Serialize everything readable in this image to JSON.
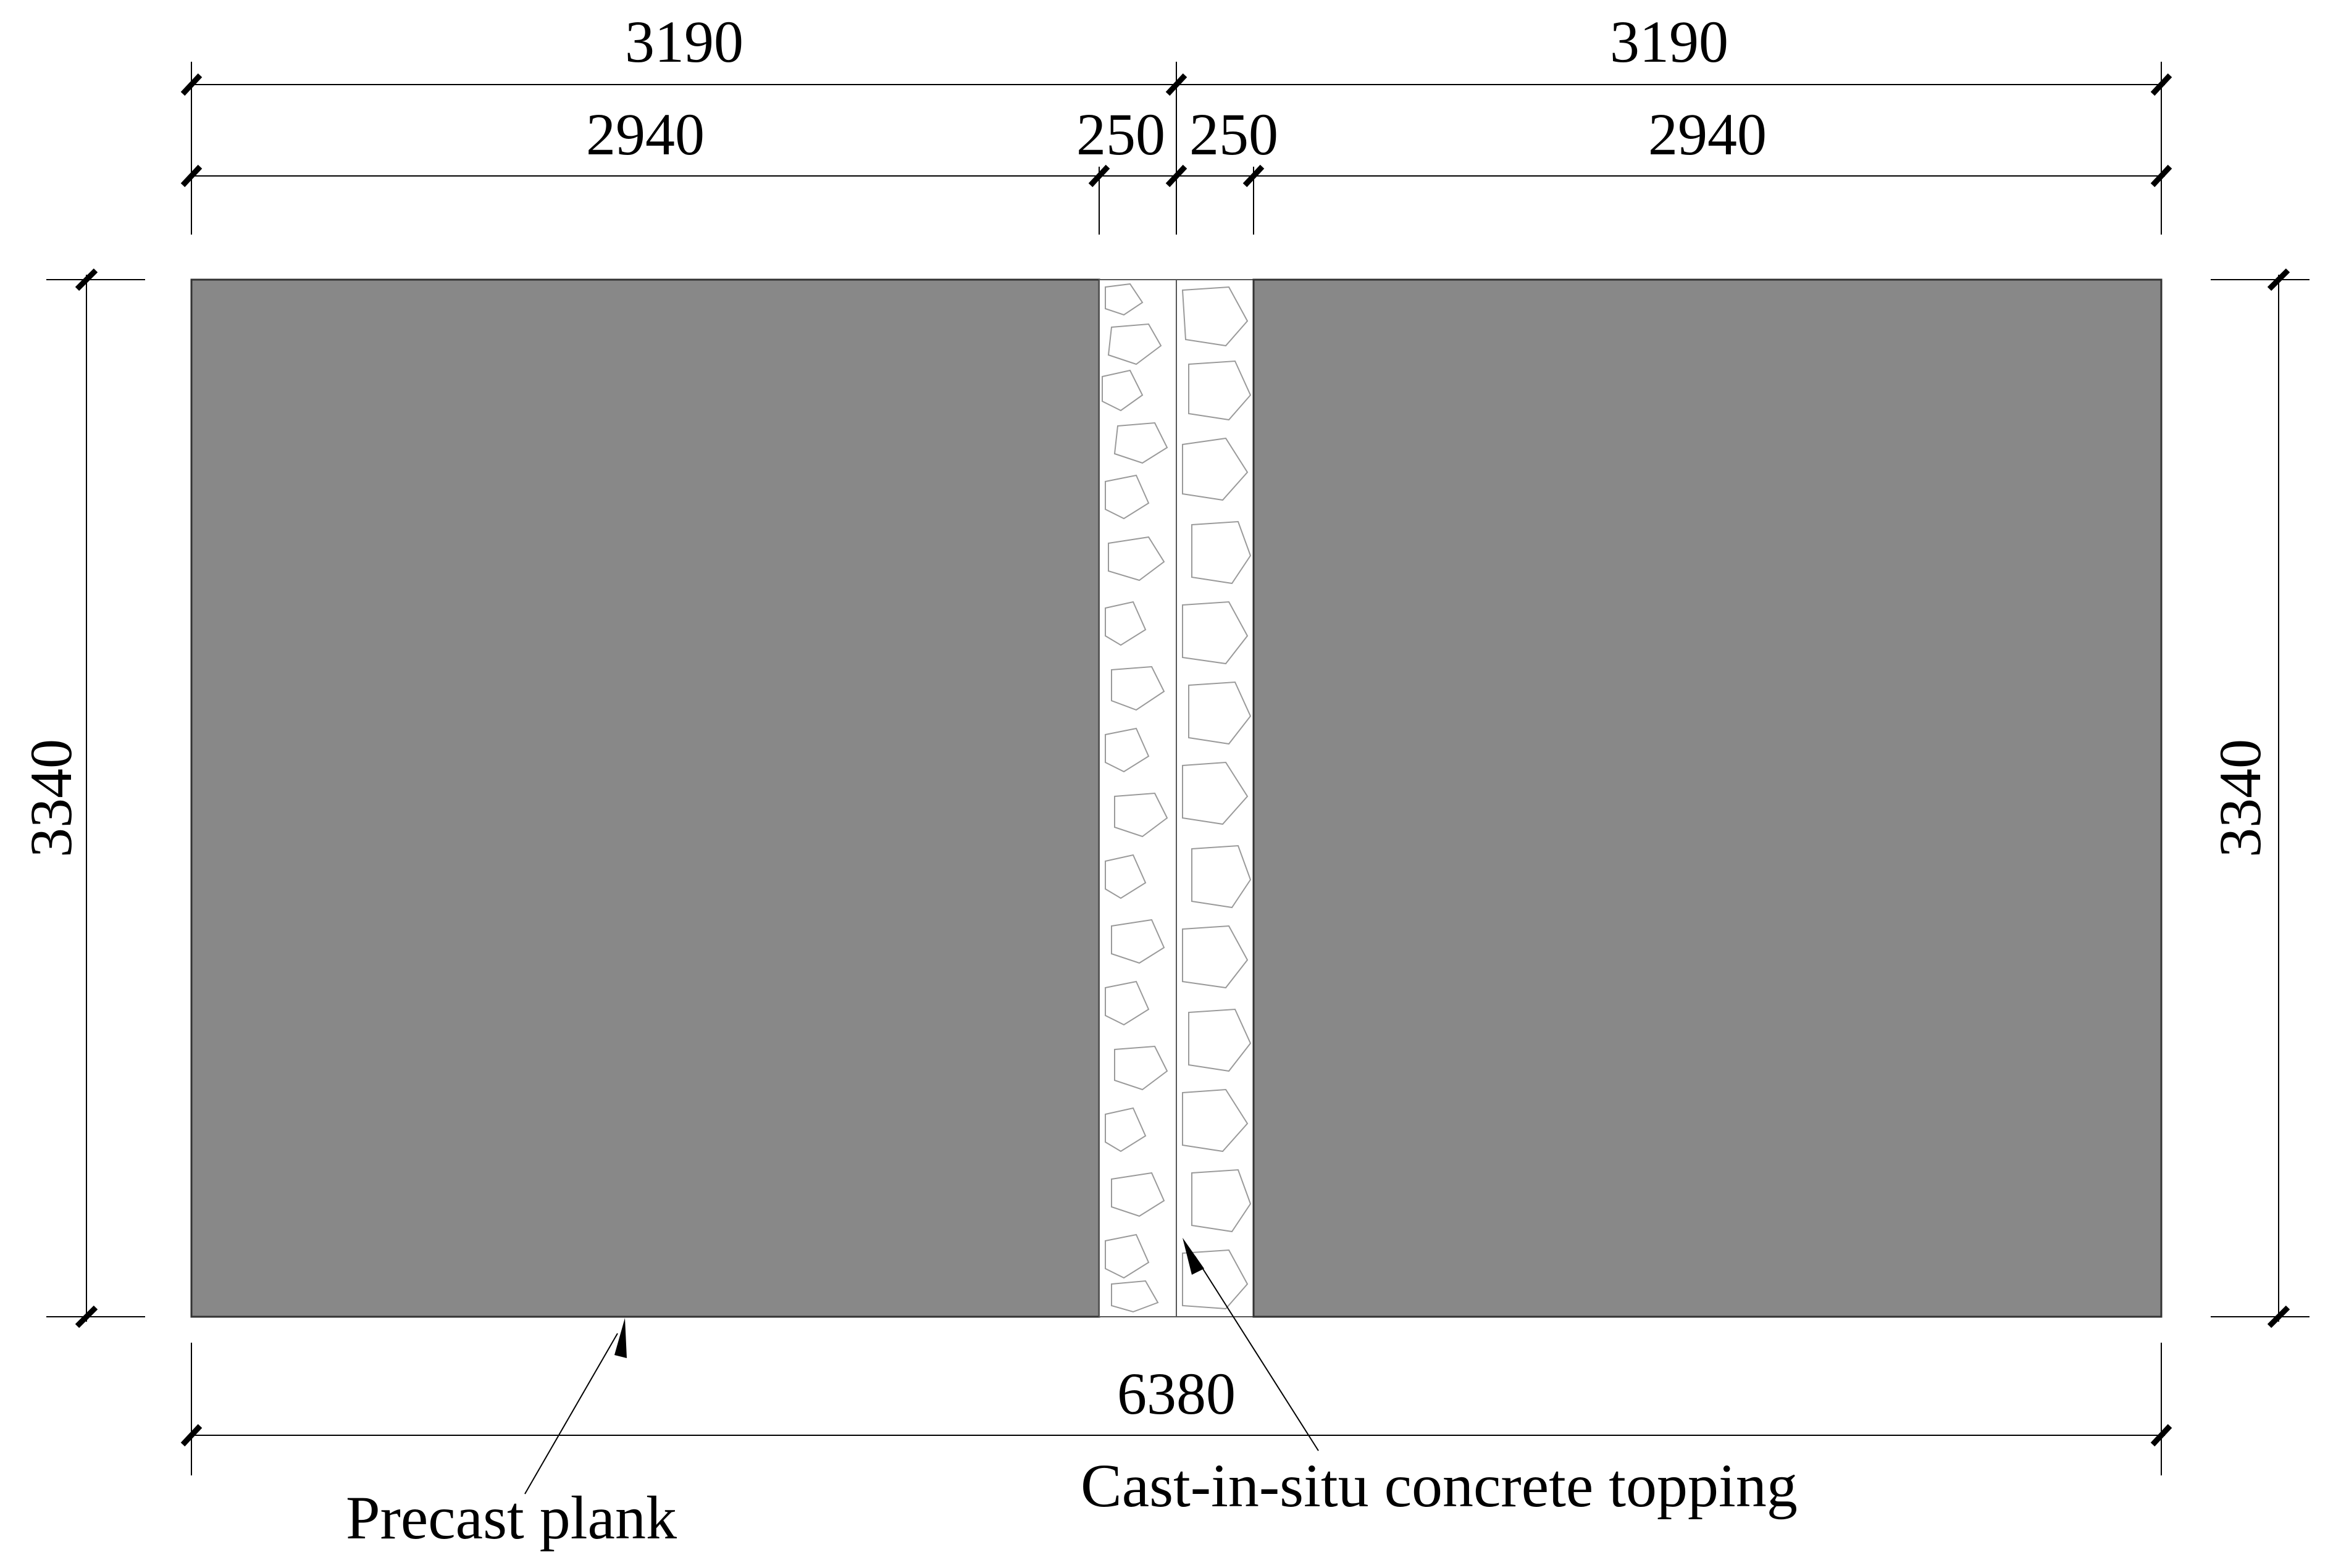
{
  "dimensions": {
    "top_left_overall": "3190",
    "top_right_overall": "3190",
    "left_plank_width": "2940",
    "left_joint_width": "250",
    "right_joint_width": "250",
    "right_plank_width": "2940",
    "left_height": "3340",
    "right_height": "3340",
    "total_width": "6380"
  },
  "labels": {
    "precast_plank": "Precast plank",
    "cast_in_situ": "Cast-in-situ concrete topping"
  },
  "colors": {
    "plank_fill": "#888888",
    "joint_fill": "#ffffff",
    "line": "#000000"
  }
}
